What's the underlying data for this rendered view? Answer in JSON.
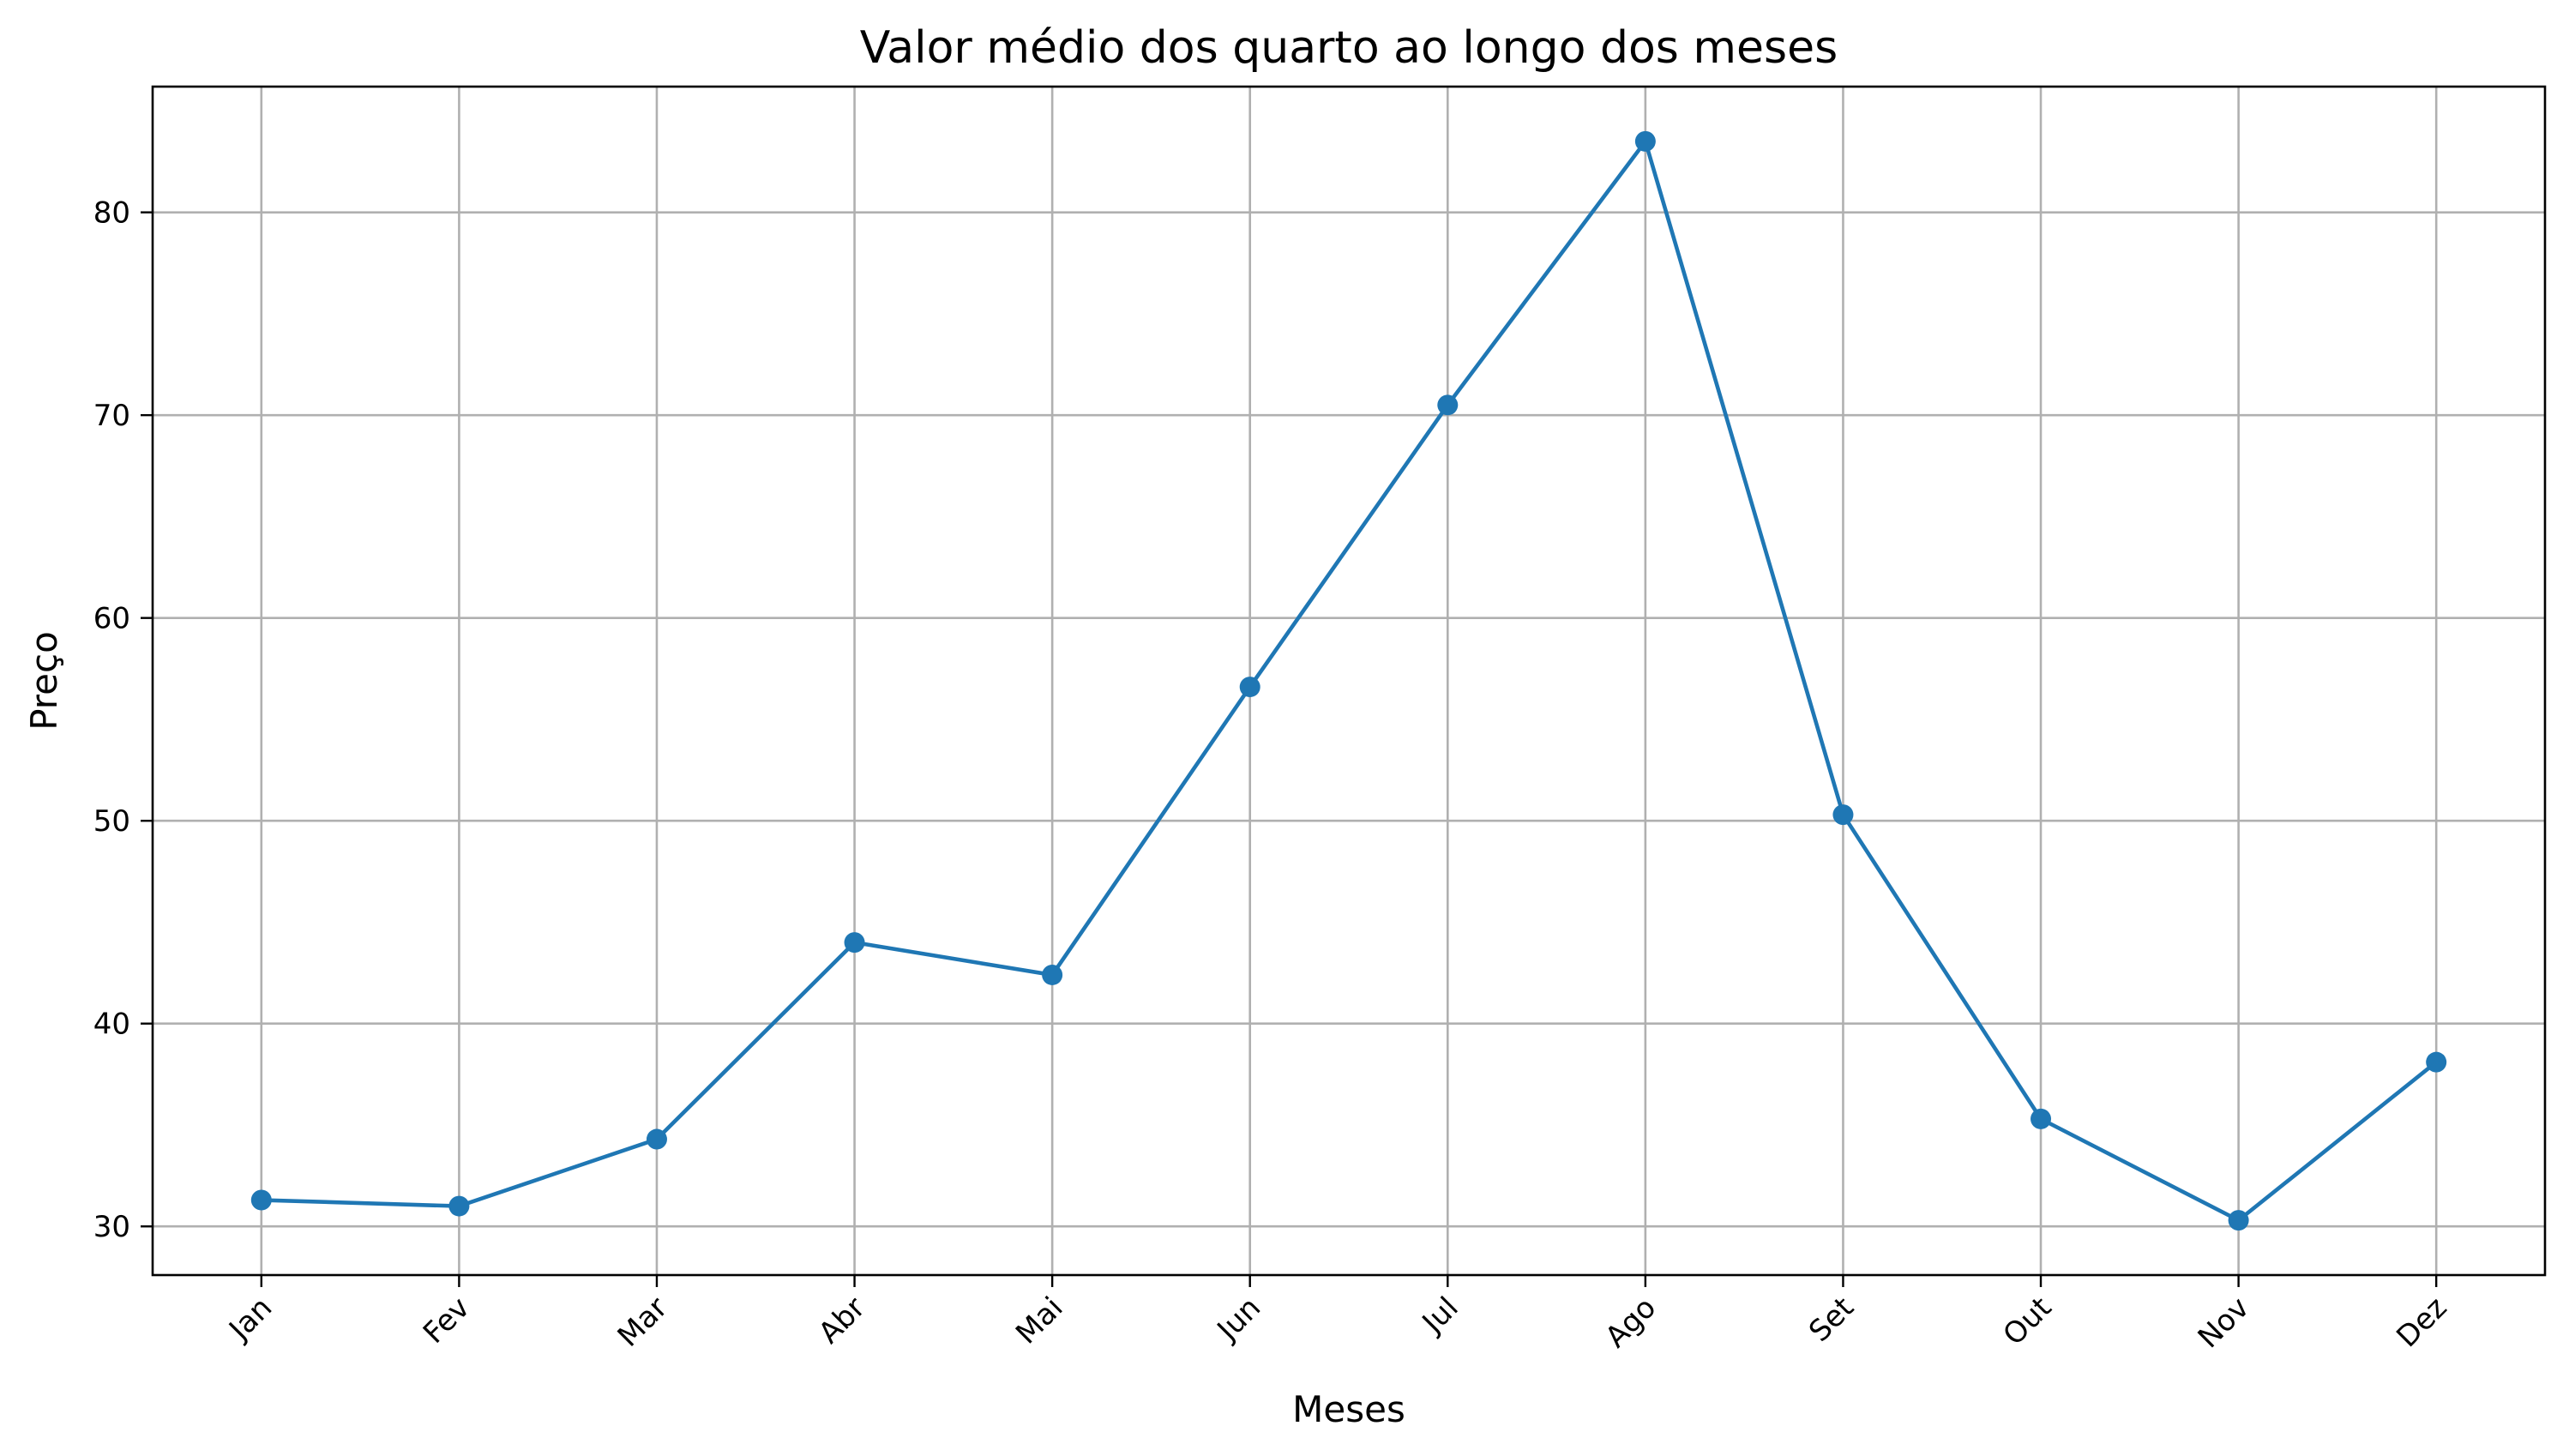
{
  "chart_data": {
    "type": "line",
    "title": "Valor médio dos quarto ao longo dos meses",
    "xlabel": "Meses",
    "ylabel": "Preço",
    "categories": [
      "Jan",
      "Fev",
      "Mar",
      "Abr",
      "Mai",
      "Jun",
      "Jul",
      "Ago",
      "Set",
      "Out",
      "Nov",
      "Dez"
    ],
    "series": [
      {
        "values": [
          31.3,
          31.0,
          34.3,
          44.0,
          42.4,
          56.6,
          70.5,
          83.5,
          50.3,
          35.3,
          30.3,
          38.1
        ],
        "color": "#1f77b4",
        "marker": "circle"
      }
    ],
    "ylim": [
      27.6,
      86.2
    ],
    "yticks": [
      30,
      40,
      50,
      60,
      70,
      80
    ],
    "xtick_rotation": 45,
    "grid": true,
    "legend": false
  }
}
